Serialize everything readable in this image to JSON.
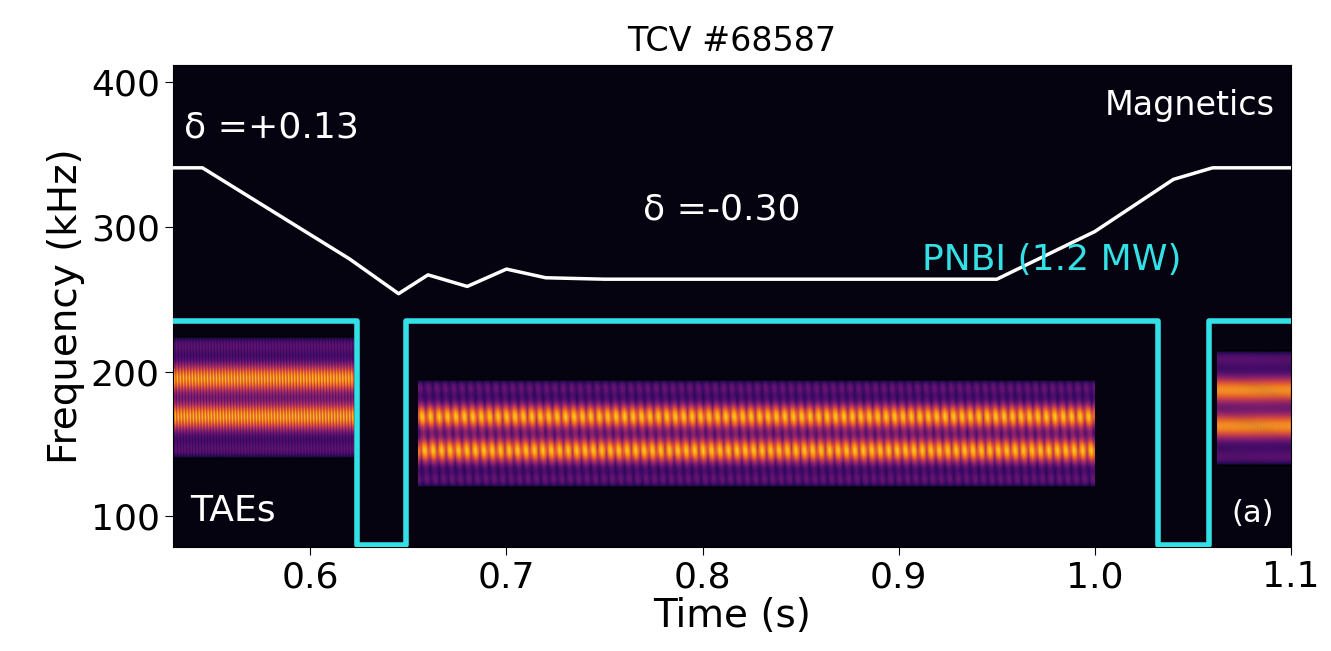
{
  "chart_data": {
    "type": "spectrogram",
    "title": "TCV #68587",
    "x_label": "Time (s)",
    "y_label": "Frequency (kHz)",
    "xlim": [
      0.53,
      1.1
    ],
    "xticks": [
      0.6,
      0.7,
      0.8,
      0.9,
      1.0,
      1.1
    ],
    "ylim": [
      79,
      412
    ],
    "yticks": [
      100,
      200,
      300,
      400
    ],
    "grid": false,
    "annotations": [
      "Magnetics",
      "TAEs",
      "(a)",
      "δ =+0.13",
      "δ =-0.30"
    ],
    "bands": [
      {
        "t_start": 0.53,
        "t_end": 0.622,
        "f_low": 140,
        "f_high": 225
      },
      {
        "t_start": 0.655,
        "t_end": 1.0,
        "f_low": 120,
        "f_high": 195
      },
      {
        "t_start": 1.062,
        "t_end": 1.1,
        "f_low": 135,
        "f_high": 215
      }
    ],
    "series": [
      {
        "name": "δ",
        "color": "#ffffff",
        "x": [
          0.53,
          0.545,
          0.62,
          0.645,
          0.66,
          0.68,
          0.7,
          0.72,
          0.75,
          0.95,
          1.0,
          1.04,
          1.06,
          1.1
        ],
        "values": [
          341,
          341,
          278,
          254,
          267,
          259,
          271,
          265,
          264,
          264,
          297,
          333,
          341,
          341
        ]
      },
      {
        "name": "PNBI (1.2 MW)",
        "color": "#33e0e6",
        "x": [
          0.53,
          0.624,
          0.624,
          0.649,
          0.649,
          1.032,
          1.032,
          1.058,
          1.058,
          1.1
        ],
        "values": [
          235,
          235,
          80,
          80,
          235,
          235,
          80,
          80,
          235,
          235
        ]
      }
    ]
  }
}
